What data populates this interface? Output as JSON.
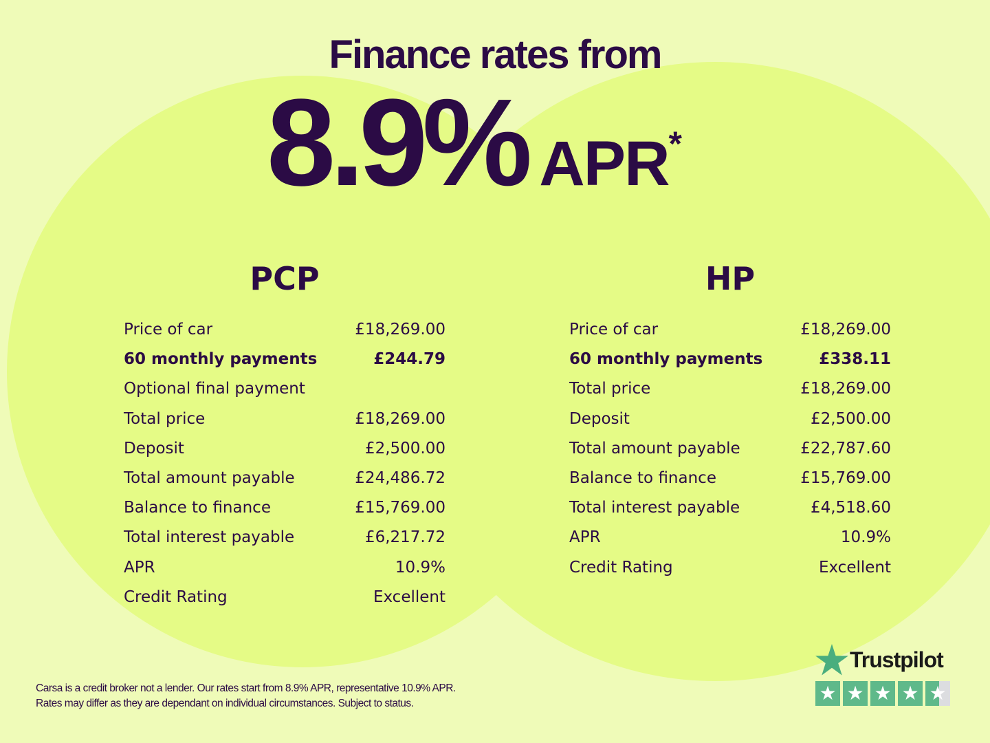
{
  "headline": "Finance rates from",
  "rate": {
    "value": "8.9%",
    "unit": "APR",
    "footnote_mark": "*"
  },
  "pcp": {
    "title": "PCP",
    "rows": [
      {
        "label": "Price of car",
        "value": "£18,269.00"
      },
      {
        "label": "60 monthly payments",
        "value": "£244.79",
        "bold": true
      },
      {
        "label": "Optional final payment",
        "value": ""
      },
      {
        "label": "Total price",
        "value": "£18,269.00"
      },
      {
        "label": "Deposit",
        "value": "£2,500.00"
      },
      {
        "label": "Total amount payable",
        "value": "£24,486.72"
      },
      {
        "label": "Balance to finance",
        "value": "£15,769.00"
      },
      {
        "label": "Total interest payable",
        "value": "£6,217.72"
      },
      {
        "label": "APR",
        "value": "10.9%"
      },
      {
        "label": "Credit Rating",
        "value": "Excellent"
      }
    ]
  },
  "hp": {
    "title": "HP",
    "rows": [
      {
        "label": "Price of car",
        "value": "£18,269.00"
      },
      {
        "label": "60 monthly payments",
        "value": "£338.11",
        "bold": true
      },
      {
        "label": "Total price",
        "value": "£18,269.00"
      },
      {
        "label": "Deposit",
        "value": "£2,500.00"
      },
      {
        "label": "Total amount payable",
        "value": "£22,787.60"
      },
      {
        "label": "Balance to finance",
        "value": "£15,769.00"
      },
      {
        "label": "Total interest payable",
        "value": "£4,518.60"
      },
      {
        "label": "APR",
        "value": "10.9%"
      },
      {
        "label": "Credit Rating",
        "value": "Excellent"
      }
    ]
  },
  "footer": {
    "line1": "Carsa is a credit broker not a lender. Our rates start from 8.9% APR, representative 10.9% APR.",
    "line2": "Rates may differ as they are dependant on individual circumstances. Subject to status."
  },
  "trustpilot": {
    "name": "Trustpilot",
    "rating_stars": 4.5,
    "max_stars": 5,
    "icon": "star-icon"
  },
  "colors": {
    "background": "#effbb8",
    "circle": "#e5fb86",
    "text": "#2b0b45",
    "trustpilot_green": "#5fb98a"
  }
}
